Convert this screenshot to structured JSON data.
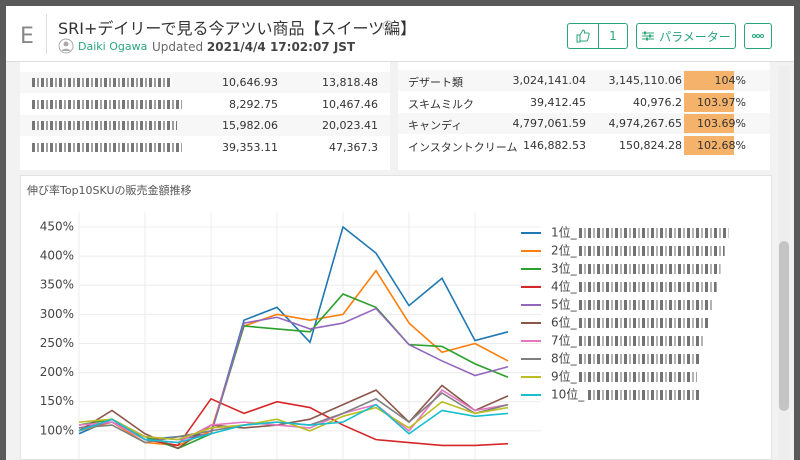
{
  "header": {
    "logo": "E",
    "title": "SRI+デイリーで見る今アツい商品【スイーツ編】",
    "author": "Daiki Ogawa",
    "updated_label": "Updated",
    "updated": "2021/4/4 17:02:07 JST"
  },
  "buttons": {
    "likes": "1",
    "params": "パラメーター"
  },
  "tables": {
    "left": {
      "rows": [
        [
          "10,646.93",
          "13,818.48"
        ],
        [
          "8,292.75",
          "10,467.46"
        ],
        [
          "15,982.06",
          "20,023.41"
        ],
        [
          "39,353.11",
          "47,367.3"
        ]
      ]
    },
    "right": {
      "rows": [
        [
          "デザート類",
          "3,024,141.04",
          "3,145,110.06",
          "104%"
        ],
        [
          "スキムミルク",
          "39,412.45",
          "40,976.2",
          "103.97%"
        ],
        [
          "キャンディ",
          "4,797,061.59",
          "4,974,267.65",
          "103.69%"
        ],
        [
          "インスタントクリーム",
          "146,882.53",
          "150,824.28",
          "102.68%"
        ]
      ]
    }
  },
  "chart_data": {
    "type": "line",
    "title": "伸び率Top10SKUの販売金額推移",
    "categories": [
      null,
      null,
      null,
      null,
      null,
      null,
      null,
      null,
      null,
      null,
      null,
      null,
      null,
      null
    ],
    "ylim": [
      50,
      475
    ],
    "yticks": [
      {
        "value": 100,
        "label": "100%"
      },
      {
        "value": 150,
        "label": "150%"
      },
      {
        "value": 200,
        "label": "200%"
      },
      {
        "value": 250,
        "label": "250%"
      },
      {
        "value": 300,
        "label": "300%"
      },
      {
        "value": 350,
        "label": "350%"
      },
      {
        "value": 400,
        "label": "400%"
      },
      {
        "value": 450,
        "label": "450%"
      }
    ],
    "grid": true,
    "series": [
      {
        "name": "1位_",
        "color": "#1f77b4",
        "values": [
          95,
          120,
          85,
          90,
          95,
          290,
          312,
          252,
          450,
          405,
          315,
          362,
          255,
          270
        ]
      },
      {
        "name": "2位_",
        "color": "#ff7f0e",
        "values": [
          100,
          115,
          80,
          75,
          100,
          280,
          300,
          290,
          300,
          375,
          285,
          235,
          250,
          220
        ]
      },
      {
        "name": "3位_",
        "color": "#2ca02c",
        "values": [
          110,
          120,
          90,
          70,
          95,
          280,
          275,
          270,
          335,
          312,
          248,
          245,
          215,
          192
        ]
      },
      {
        "name": "4位_",
        "color": "#d62728",
        "values": [
          100,
          120,
          85,
          75,
          155,
          130,
          150,
          140,
          110,
          85,
          80,
          75,
          75,
          78
        ]
      },
      {
        "name": "5位_",
        "color": "#9467bd",
        "values": [
          105,
          115,
          90,
          85,
          95,
          285,
          295,
          275,
          285,
          310,
          248,
          220,
          195,
          210
        ]
      },
      {
        "name": "6位_",
        "color": "#8c564b",
        "values": [
          100,
          135,
          95,
          70,
          110,
          105,
          110,
          120,
          145,
          170,
          115,
          178,
          135,
          160
        ]
      },
      {
        "name": "7位_",
        "color": "#e377c2",
        "values": [
          110,
          115,
          85,
          80,
          110,
          115,
          110,
          105,
          130,
          145,
          100,
          170,
          135,
          145
        ]
      },
      {
        "name": "8位_",
        "color": "#7f7f7f",
        "values": [
          105,
          110,
          80,
          90,
          100,
          110,
          115,
          110,
          130,
          155,
          115,
          165,
          130,
          145
        ]
      },
      {
        "name": "9位_",
        "color": "#bcbd22",
        "values": [
          115,
          120,
          90,
          85,
          105,
          110,
          120,
          100,
          125,
          140,
          105,
          150,
          130,
          140
        ]
      },
      {
        "name": "10位_",
        "color": "#17becf",
        "values": [
          100,
          120,
          85,
          80,
          95,
          110,
          115,
          110,
          115,
          145,
          95,
          135,
          125,
          130
        ]
      }
    ]
  }
}
